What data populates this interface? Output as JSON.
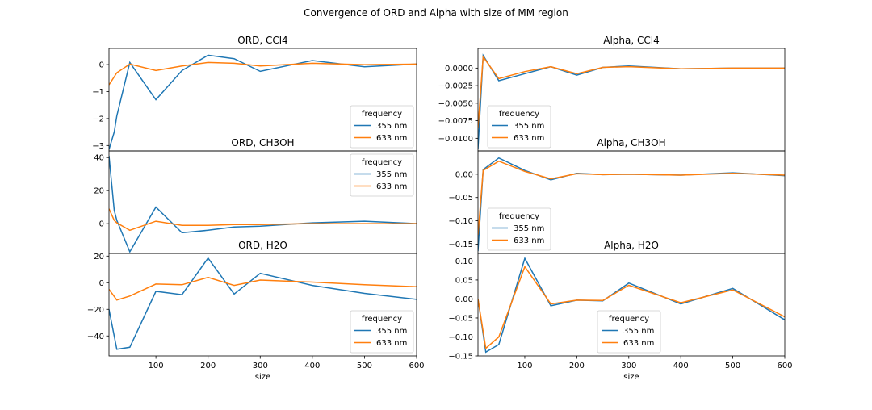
{
  "suptitle": "Convergence of ORD and Alpha with size of MM region",
  "legend": {
    "title": "frequency",
    "entries": [
      "355 nm",
      "633 nm"
    ]
  },
  "colors": {
    "355 nm": "#1f77b4",
    "633 nm": "#ff7f0e"
  },
  "chart_data": [
    {
      "type": "line",
      "title": "ORD, CCl4",
      "xlabel": "",
      "ylabel": "",
      "xlim": [
        10,
        600
      ],
      "ylim": [
        -3.2,
        0.6
      ],
      "xticks": [],
      "yticks": [
        -3,
        -2,
        -1,
        0
      ],
      "ytick_labels": [
        "−3",
        "−2",
        "−1",
        "0"
      ],
      "legend_position": "lower right",
      "x": [
        10,
        20,
        25,
        50,
        100,
        150,
        200,
        250,
        300,
        400,
        500,
        600
      ],
      "series": [
        {
          "name": "355 nm",
          "values": [
            -3.15,
            -2.5,
            -1.9,
            0.08,
            -1.3,
            -0.22,
            0.35,
            0.22,
            -0.25,
            0.15,
            -0.08,
            0.02
          ]
        },
        {
          "name": "633 nm",
          "values": [
            -0.75,
            -0.45,
            -0.3,
            0.02,
            -0.22,
            -0.05,
            0.08,
            0.05,
            -0.05,
            0.05,
            0.0,
            0.02
          ]
        }
      ]
    },
    {
      "type": "line",
      "title": "ORD, CH3OH",
      "xlabel": "",
      "ylabel": "",
      "xlim": [
        10,
        600
      ],
      "ylim": [
        -18,
        44
      ],
      "xticks": [],
      "yticks": [
        0,
        20,
        40
      ],
      "ytick_labels": [
        "0",
        "20",
        "40"
      ],
      "legend_position": "upper right",
      "x": [
        10,
        20,
        25,
        50,
        100,
        150,
        200,
        250,
        300,
        400,
        500,
        600
      ],
      "series": [
        {
          "name": "355 nm",
          "values": [
            41,
            8,
            2,
            -17,
            10,
            -5.5,
            -4,
            -2,
            -1.5,
            0.5,
            1.5,
            0
          ]
        },
        {
          "name": "633 nm",
          "values": [
            9,
            2,
            0.5,
            -4,
            1.5,
            -1,
            -1,
            -0.5,
            -0.5,
            0,
            0,
            0
          ]
        }
      ]
    },
    {
      "type": "line",
      "title": "ORD, H2O",
      "xlabel": "size",
      "ylabel": "",
      "xlim": [
        10,
        600
      ],
      "ylim": [
        -55,
        22
      ],
      "xticks": [
        100,
        200,
        300,
        400,
        500,
        600
      ],
      "yticks": [
        -40,
        -20,
        0,
        20
      ],
      "ytick_labels": [
        "−40",
        "−20",
        "0",
        "20"
      ],
      "legend_position": "lower right",
      "x": [
        10,
        25,
        50,
        100,
        150,
        200,
        250,
        300,
        400,
        500,
        600
      ],
      "series": [
        {
          "name": "355 nm",
          "values": [
            -20,
            -50,
            -48.5,
            -6.5,
            -9,
            18.5,
            -8.5,
            7,
            -2,
            -8,
            -12.5
          ]
        },
        {
          "name": "633 nm",
          "values": [
            -5,
            -13,
            -10,
            -1,
            -1.5,
            4,
            -2,
            2,
            0.5,
            -1.5,
            -3
          ]
        }
      ]
    },
    {
      "type": "line",
      "title": "Alpha, CCl4",
      "xlabel": "",
      "ylabel": "",
      "xlim": [
        10,
        600
      ],
      "ylim": [
        -0.0118,
        0.0028
      ],
      "xticks": [],
      "yticks": [
        0,
        -0.0025,
        -0.005,
        -0.0075,
        -0.01
      ],
      "ytick_labels": [
        "0.0000",
        "−0.0025",
        "−0.0050",
        "−0.0075",
        "−0.0100"
      ],
      "legend_position": "lower left",
      "x": [
        10,
        20,
        50,
        100,
        150,
        200,
        250,
        300,
        400,
        500,
        600
      ],
      "series": [
        {
          "name": "355 nm",
          "values": [
            -0.0115,
            0.0018,
            -0.0018,
            -0.0008,
            0.0002,
            -0.001,
            0.0001,
            0.0003,
            -0.0001,
            0.0,
            0.0
          ]
        },
        {
          "name": "633 nm",
          "values": [
            -0.0085,
            0.0016,
            -0.0015,
            -0.0005,
            0.0002,
            -0.0008,
            0.0001,
            0.0002,
            -0.0001,
            0.0,
            0.0
          ]
        }
      ]
    },
    {
      "type": "line",
      "title": "Alpha, CH3OH",
      "xlabel": "",
      "ylabel": "",
      "xlim": [
        10,
        600
      ],
      "ylim": [
        -0.17,
        0.05
      ],
      "xticks": [],
      "yticks": [
        0,
        -0.05,
        -0.1,
        -0.15
      ],
      "ytick_labels": [
        "0.00",
        "−0.05",
        "−0.10",
        "−0.15"
      ],
      "legend_position": "lower left",
      "x": [
        10,
        20,
        50,
        100,
        150,
        200,
        250,
        300,
        400,
        500,
        600
      ],
      "series": [
        {
          "name": "355 nm",
          "values": [
            -0.165,
            0.01,
            0.035,
            0.008,
            -0.012,
            0.002,
            -0.001,
            0.0,
            -0.002,
            0.003,
            -0.003
          ]
        },
        {
          "name": "633 nm",
          "values": [
            -0.13,
            0.008,
            0.028,
            0.006,
            -0.01,
            0.001,
            -0.001,
            0.0,
            -0.002,
            0.002,
            -0.002
          ]
        }
      ]
    },
    {
      "type": "line",
      "title": "Alpha, H2O",
      "xlabel": "size",
      "ylabel": "",
      "xlim": [
        10,
        600
      ],
      "ylim": [
        -0.15,
        0.12
      ],
      "xticks": [
        100,
        200,
        300,
        400,
        500,
        600
      ],
      "yticks": [
        0.1,
        0.05,
        0,
        -0.05,
        -0.1,
        -0.15
      ],
      "ytick_labels": [
        "0.10",
        "0.05",
        "0.00",
        "−0.05",
        "−0.10",
        "−0.15"
      ],
      "legend_position": "lower center",
      "x": [
        10,
        25,
        50,
        100,
        150,
        200,
        250,
        300,
        400,
        500,
        600
      ],
      "series": [
        {
          "name": "355 nm",
          "values": [
            0.0,
            -0.14,
            -0.12,
            0.107,
            -0.018,
            -0.003,
            -0.005,
            0.042,
            -0.013,
            0.028,
            -0.055
          ]
        },
        {
          "name": "633 nm",
          "values": [
            0.0,
            -0.13,
            -0.1,
            0.085,
            -0.013,
            -0.003,
            -0.004,
            0.036,
            -0.01,
            0.024,
            -0.047
          ]
        }
      ]
    }
  ]
}
